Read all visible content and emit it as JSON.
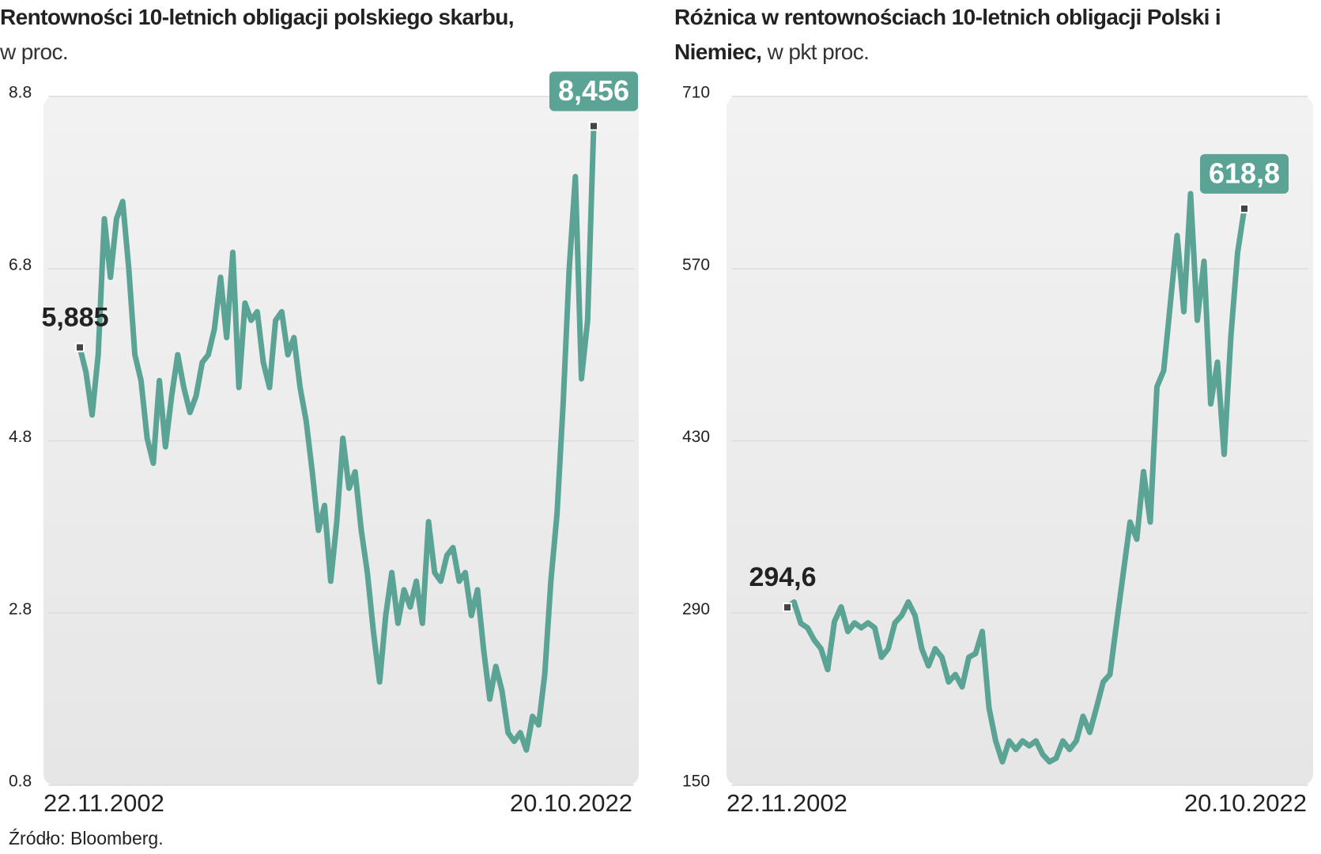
{
  "chart_data": [
    {
      "type": "line",
      "title": "Rentowności 10-letnich obligacji polskiego skarbu,",
      "subtitle": "w proc.",
      "categories": [
        "22.11.2002",
        null,
        null,
        null,
        null,
        null,
        null,
        null,
        null,
        null,
        null,
        null,
        null,
        null,
        null,
        null,
        null,
        null,
        null,
        null,
        null,
        null,
        null,
        null,
        null,
        null,
        null,
        null,
        null,
        null,
        null,
        null,
        null,
        null,
        null,
        null,
        null,
        null,
        null,
        null,
        null,
        null,
        null,
        null,
        null,
        null,
        null,
        null,
        null,
        null,
        null,
        null,
        null,
        null,
        null,
        null,
        null,
        null,
        null,
        null,
        null,
        null,
        null,
        null,
        null,
        null,
        null,
        null,
        null,
        null,
        null,
        null,
        null,
        null,
        null,
        null,
        null,
        null,
        null,
        null,
        null,
        null,
        null,
        null,
        "20.10.2022"
      ],
      "values": [
        5.885,
        5.6,
        5.1,
        5.8,
        7.38,
        6.7,
        7.38,
        7.58,
        6.8,
        5.8,
        5.5,
        4.83,
        4.54,
        5.5,
        4.73,
        5.32,
        5.8,
        5.42,
        5.13,
        5.32,
        5.71,
        5.8,
        6.1,
        6.7,
        6.0,
        6.99,
        5.42,
        6.4,
        6.2,
        6.3,
        5.71,
        5.42,
        6.2,
        6.3,
        5.8,
        6.0,
        5.42,
        5.03,
        4.44,
        3.76,
        4.05,
        3.17,
        3.86,
        4.83,
        4.25,
        4.44,
        3.76,
        3.27,
        2.58,
        2.0,
        2.77,
        3.27,
        2.68,
        3.07,
        2.87,
        3.17,
        2.68,
        3.86,
        3.27,
        3.17,
        3.47,
        3.56,
        3.17,
        3.27,
        2.77,
        3.07,
        2.38,
        1.8,
        2.18,
        1.9,
        1.41,
        1.31,
        1.41,
        1.21,
        1.6,
        1.5,
        2.09,
        3.17,
        3.95,
        5.22,
        6.79,
        7.87,
        5.52,
        6.2,
        8.456
      ],
      "value_labels": [
        "5,885",
        null,
        null,
        null,
        null,
        null,
        null,
        null,
        null,
        null,
        null,
        null,
        null,
        null,
        null,
        null,
        null,
        null,
        null,
        null,
        null,
        null,
        null,
        null,
        null,
        null,
        null,
        null,
        null,
        null,
        null,
        null,
        null,
        null,
        null,
        null,
        null,
        null,
        null,
        null,
        null,
        null,
        null,
        null,
        null,
        null,
        null,
        null,
        null,
        null,
        null,
        null,
        null,
        null,
        null,
        null,
        null,
        null,
        null,
        null,
        null,
        null,
        null,
        null,
        null,
        null,
        null,
        null,
        null,
        null,
        null,
        null,
        null,
        null,
        null,
        null,
        null,
        null,
        null,
        null,
        null,
        null,
        null,
        null,
        "8,456"
      ],
      "color": "#5ba394",
      "ylim": [
        0.8,
        8.8
      ],
      "yticks": [
        0.8,
        2.8,
        4.8,
        6.8,
        8.8
      ],
      "grid": true
    },
    {
      "type": "line",
      "title": "Różnica w rentownościach 10-letnich obligacji Polski i Niemiec,",
      "subtitle": "w pkt proc.",
      "categories": [
        "22.11.2002",
        null,
        null,
        null,
        null,
        null,
        null,
        null,
        null,
        null,
        null,
        null,
        null,
        null,
        null,
        null,
        null,
        null,
        null,
        null,
        null,
        null,
        null,
        null,
        null,
        null,
        null,
        null,
        null,
        null,
        null,
        null,
        null,
        null,
        null,
        null,
        null,
        null,
        null,
        null,
        null,
        null,
        null,
        null,
        null,
        null,
        null,
        null,
        null,
        null,
        null,
        null,
        null,
        null,
        null,
        null,
        null,
        null,
        null,
        null,
        null,
        null,
        null,
        null,
        null,
        null,
        null,
        null,
        "20.10.2022"
      ],
      "values": [
        294.6,
        299,
        281.6,
        278,
        268,
        261,
        244,
        283,
        295,
        275,
        282,
        278,
        282,
        278,
        254,
        261,
        282,
        288,
        299,
        288,
        261,
        247,
        261,
        254,
        234,
        240,
        230,
        254,
        257,
        275,
        213,
        186,
        169,
        186,
        179,
        186,
        182,
        186,
        175,
        169,
        172,
        186,
        179,
        186,
        206,
        193,
        213,
        234,
        240,
        282,
        323,
        364,
        350,
        405,
        364,
        474,
        487,
        542,
        597,
        535,
        631,
        528,
        576,
        460,
        494,
        419,
        515,
        583,
        618.8
      ],
      "value_labels": [
        "294,6",
        null,
        null,
        null,
        null,
        null,
        null,
        null,
        null,
        null,
        null,
        null,
        null,
        null,
        null,
        null,
        null,
        null,
        null,
        null,
        null,
        null,
        null,
        null,
        null,
        null,
        null,
        null,
        null,
        null,
        null,
        null,
        null,
        null,
        null,
        null,
        null,
        null,
        null,
        null,
        null,
        null,
        null,
        null,
        null,
        null,
        null,
        null,
        null,
        null,
        null,
        null,
        null,
        null,
        null,
        null,
        null,
        null,
        null,
        null,
        null,
        null,
        null,
        null,
        null,
        null,
        null,
        null,
        "618,8"
      ],
      "color": "#5ba394",
      "ylim": [
        150,
        710
      ],
      "yticks": [
        150,
        290,
        430,
        570,
        710
      ],
      "grid": true
    }
  ],
  "source": "Źródło: Bloomberg."
}
